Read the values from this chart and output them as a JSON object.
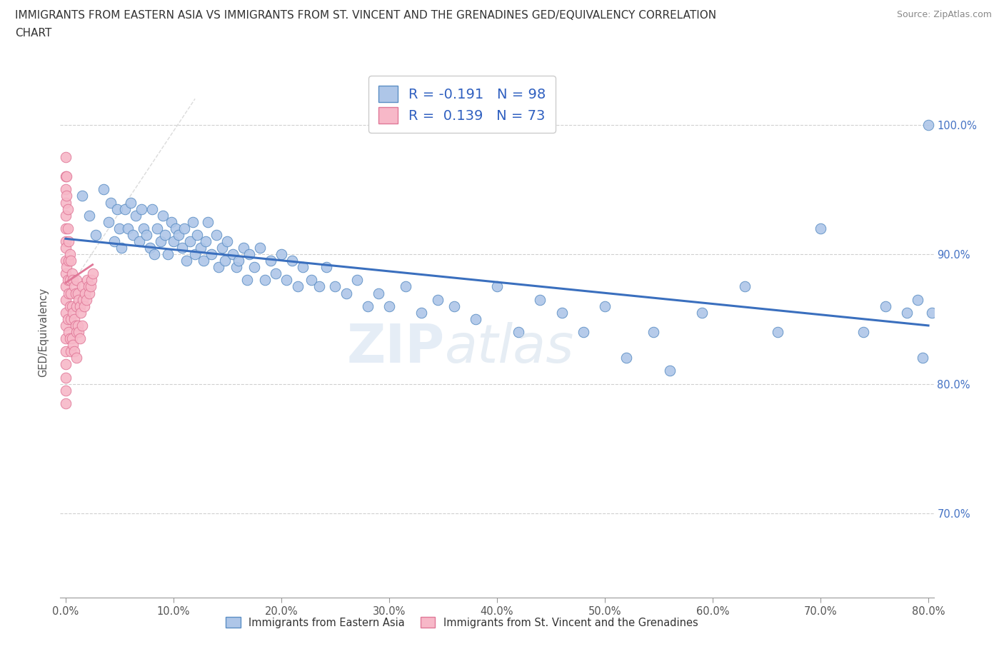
{
  "title_line1": "IMMIGRANTS FROM EASTERN ASIA VS IMMIGRANTS FROM ST. VINCENT AND THE GRENADINES GED/EQUIVALENCY CORRELATION",
  "title_line2": "CHART",
  "source": "Source: ZipAtlas.com",
  "xlabel_blue": "Immigrants from Eastern Asia",
  "xlabel_pink": "Immigrants from St. Vincent and the Grenadines",
  "ylabel": "GED/Equivalency",
  "R_blue": -0.191,
  "N_blue": 98,
  "R_pink": 0.139,
  "N_pink": 73,
  "blue_color": "#aec6e8",
  "blue_edge_color": "#5b8ec4",
  "pink_color": "#f7b8c8",
  "pink_edge_color": "#e07898",
  "blue_line_color": "#3a6fbe",
  "pink_line_color": "#e07898",
  "watermark": "ZIPatlas",
  "xlim_min": -0.005,
  "xlim_max": 0.805,
  "ylim_min": 0.635,
  "ylim_max": 1.045,
  "ytick_vals": [
    0.7,
    0.8,
    0.9,
    1.0
  ],
  "ytick_labels": [
    "70.0%",
    "80.0%",
    "90.0%",
    "100.0%"
  ],
  "xtick_vals": [
    0.0,
    0.1,
    0.2,
    0.3,
    0.4,
    0.5,
    0.6,
    0.7,
    0.8
  ],
  "xtick_labels": [
    "0.0%",
    "10.0%",
    "20.0%",
    "30.0%",
    "40.0%",
    "50.0%",
    "60.0%",
    "70.0%",
    "80.0%"
  ],
  "blue_trend_x": [
    0.0,
    0.8
  ],
  "blue_trend_y": [
    0.912,
    0.845
  ],
  "pink_trend_x": [
    0.0,
    0.025
  ],
  "pink_trend_y": [
    0.878,
    0.892
  ],
  "blue_x": [
    0.015,
    0.022,
    0.028,
    0.035,
    0.04,
    0.042,
    0.045,
    0.048,
    0.05,
    0.052,
    0.055,
    0.058,
    0.06,
    0.062,
    0.065,
    0.068,
    0.07,
    0.072,
    0.075,
    0.078,
    0.08,
    0.082,
    0.085,
    0.088,
    0.09,
    0.092,
    0.095,
    0.098,
    0.1,
    0.102,
    0.105,
    0.108,
    0.11,
    0.112,
    0.115,
    0.118,
    0.12,
    0.122,
    0.125,
    0.128,
    0.13,
    0.132,
    0.135,
    0.14,
    0.142,
    0.145,
    0.148,
    0.15,
    0.155,
    0.158,
    0.16,
    0.165,
    0.168,
    0.17,
    0.175,
    0.18,
    0.185,
    0.19,
    0.195,
    0.2,
    0.205,
    0.21,
    0.215,
    0.22,
    0.228,
    0.235,
    0.242,
    0.25,
    0.26,
    0.27,
    0.28,
    0.29,
    0.3,
    0.315,
    0.33,
    0.345,
    0.36,
    0.38,
    0.4,
    0.42,
    0.44,
    0.46,
    0.48,
    0.5,
    0.52,
    0.545,
    0.56,
    0.59,
    0.63,
    0.66,
    0.7,
    0.74,
    0.76,
    0.78,
    0.79,
    0.795,
    0.8,
    0.803
  ],
  "blue_y": [
    0.945,
    0.93,
    0.915,
    0.95,
    0.925,
    0.94,
    0.91,
    0.935,
    0.92,
    0.905,
    0.935,
    0.92,
    0.94,
    0.915,
    0.93,
    0.91,
    0.935,
    0.92,
    0.915,
    0.905,
    0.935,
    0.9,
    0.92,
    0.91,
    0.93,
    0.915,
    0.9,
    0.925,
    0.91,
    0.92,
    0.915,
    0.905,
    0.92,
    0.895,
    0.91,
    0.925,
    0.9,
    0.915,
    0.905,
    0.895,
    0.91,
    0.925,
    0.9,
    0.915,
    0.89,
    0.905,
    0.895,
    0.91,
    0.9,
    0.89,
    0.895,
    0.905,
    0.88,
    0.9,
    0.89,
    0.905,
    0.88,
    0.895,
    0.885,
    0.9,
    0.88,
    0.895,
    0.875,
    0.89,
    0.88,
    0.875,
    0.89,
    0.875,
    0.87,
    0.88,
    0.86,
    0.87,
    0.86,
    0.875,
    0.855,
    0.865,
    0.86,
    0.85,
    0.875,
    0.84,
    0.865,
    0.855,
    0.84,
    0.86,
    0.82,
    0.84,
    0.81,
    0.855,
    0.875,
    0.84,
    0.92,
    0.84,
    0.86,
    0.855,
    0.865,
    0.82,
    1.0,
    0.855
  ],
  "pink_x": [
    0.0,
    0.0,
    0.0,
    0.0,
    0.0,
    0.0,
    0.0,
    0.0,
    0.0,
    0.0,
    0.0,
    0.0,
    0.0,
    0.0,
    0.0,
    0.0,
    0.0,
    0.0,
    0.0,
    0.0,
    0.001,
    0.001,
    0.001,
    0.002,
    0.002,
    0.002,
    0.002,
    0.003,
    0.003,
    0.003,
    0.003,
    0.004,
    0.004,
    0.004,
    0.004,
    0.005,
    0.005,
    0.005,
    0.005,
    0.006,
    0.006,
    0.006,
    0.007,
    0.007,
    0.007,
    0.008,
    0.008,
    0.008,
    0.009,
    0.009,
    0.01,
    0.01,
    0.01,
    0.01,
    0.011,
    0.011,
    0.012,
    0.012,
    0.013,
    0.013,
    0.014,
    0.015,
    0.015,
    0.016,
    0.017,
    0.018,
    0.019,
    0.02,
    0.021,
    0.022,
    0.023,
    0.024,
    0.025
  ],
  "pink_y": [
    0.975,
    0.96,
    0.95,
    0.94,
    0.93,
    0.92,
    0.91,
    0.905,
    0.895,
    0.885,
    0.875,
    0.865,
    0.855,
    0.845,
    0.835,
    0.825,
    0.815,
    0.805,
    0.795,
    0.785,
    0.96,
    0.945,
    0.89,
    0.935,
    0.92,
    0.88,
    0.85,
    0.91,
    0.895,
    0.87,
    0.84,
    0.9,
    0.88,
    0.86,
    0.835,
    0.895,
    0.87,
    0.85,
    0.825,
    0.885,
    0.86,
    0.835,
    0.88,
    0.855,
    0.83,
    0.875,
    0.85,
    0.825,
    0.87,
    0.845,
    0.88,
    0.86,
    0.84,
    0.82,
    0.87,
    0.845,
    0.865,
    0.84,
    0.86,
    0.835,
    0.855,
    0.875,
    0.845,
    0.865,
    0.86,
    0.87,
    0.865,
    0.88,
    0.875,
    0.87,
    0.875,
    0.88,
    0.885
  ]
}
